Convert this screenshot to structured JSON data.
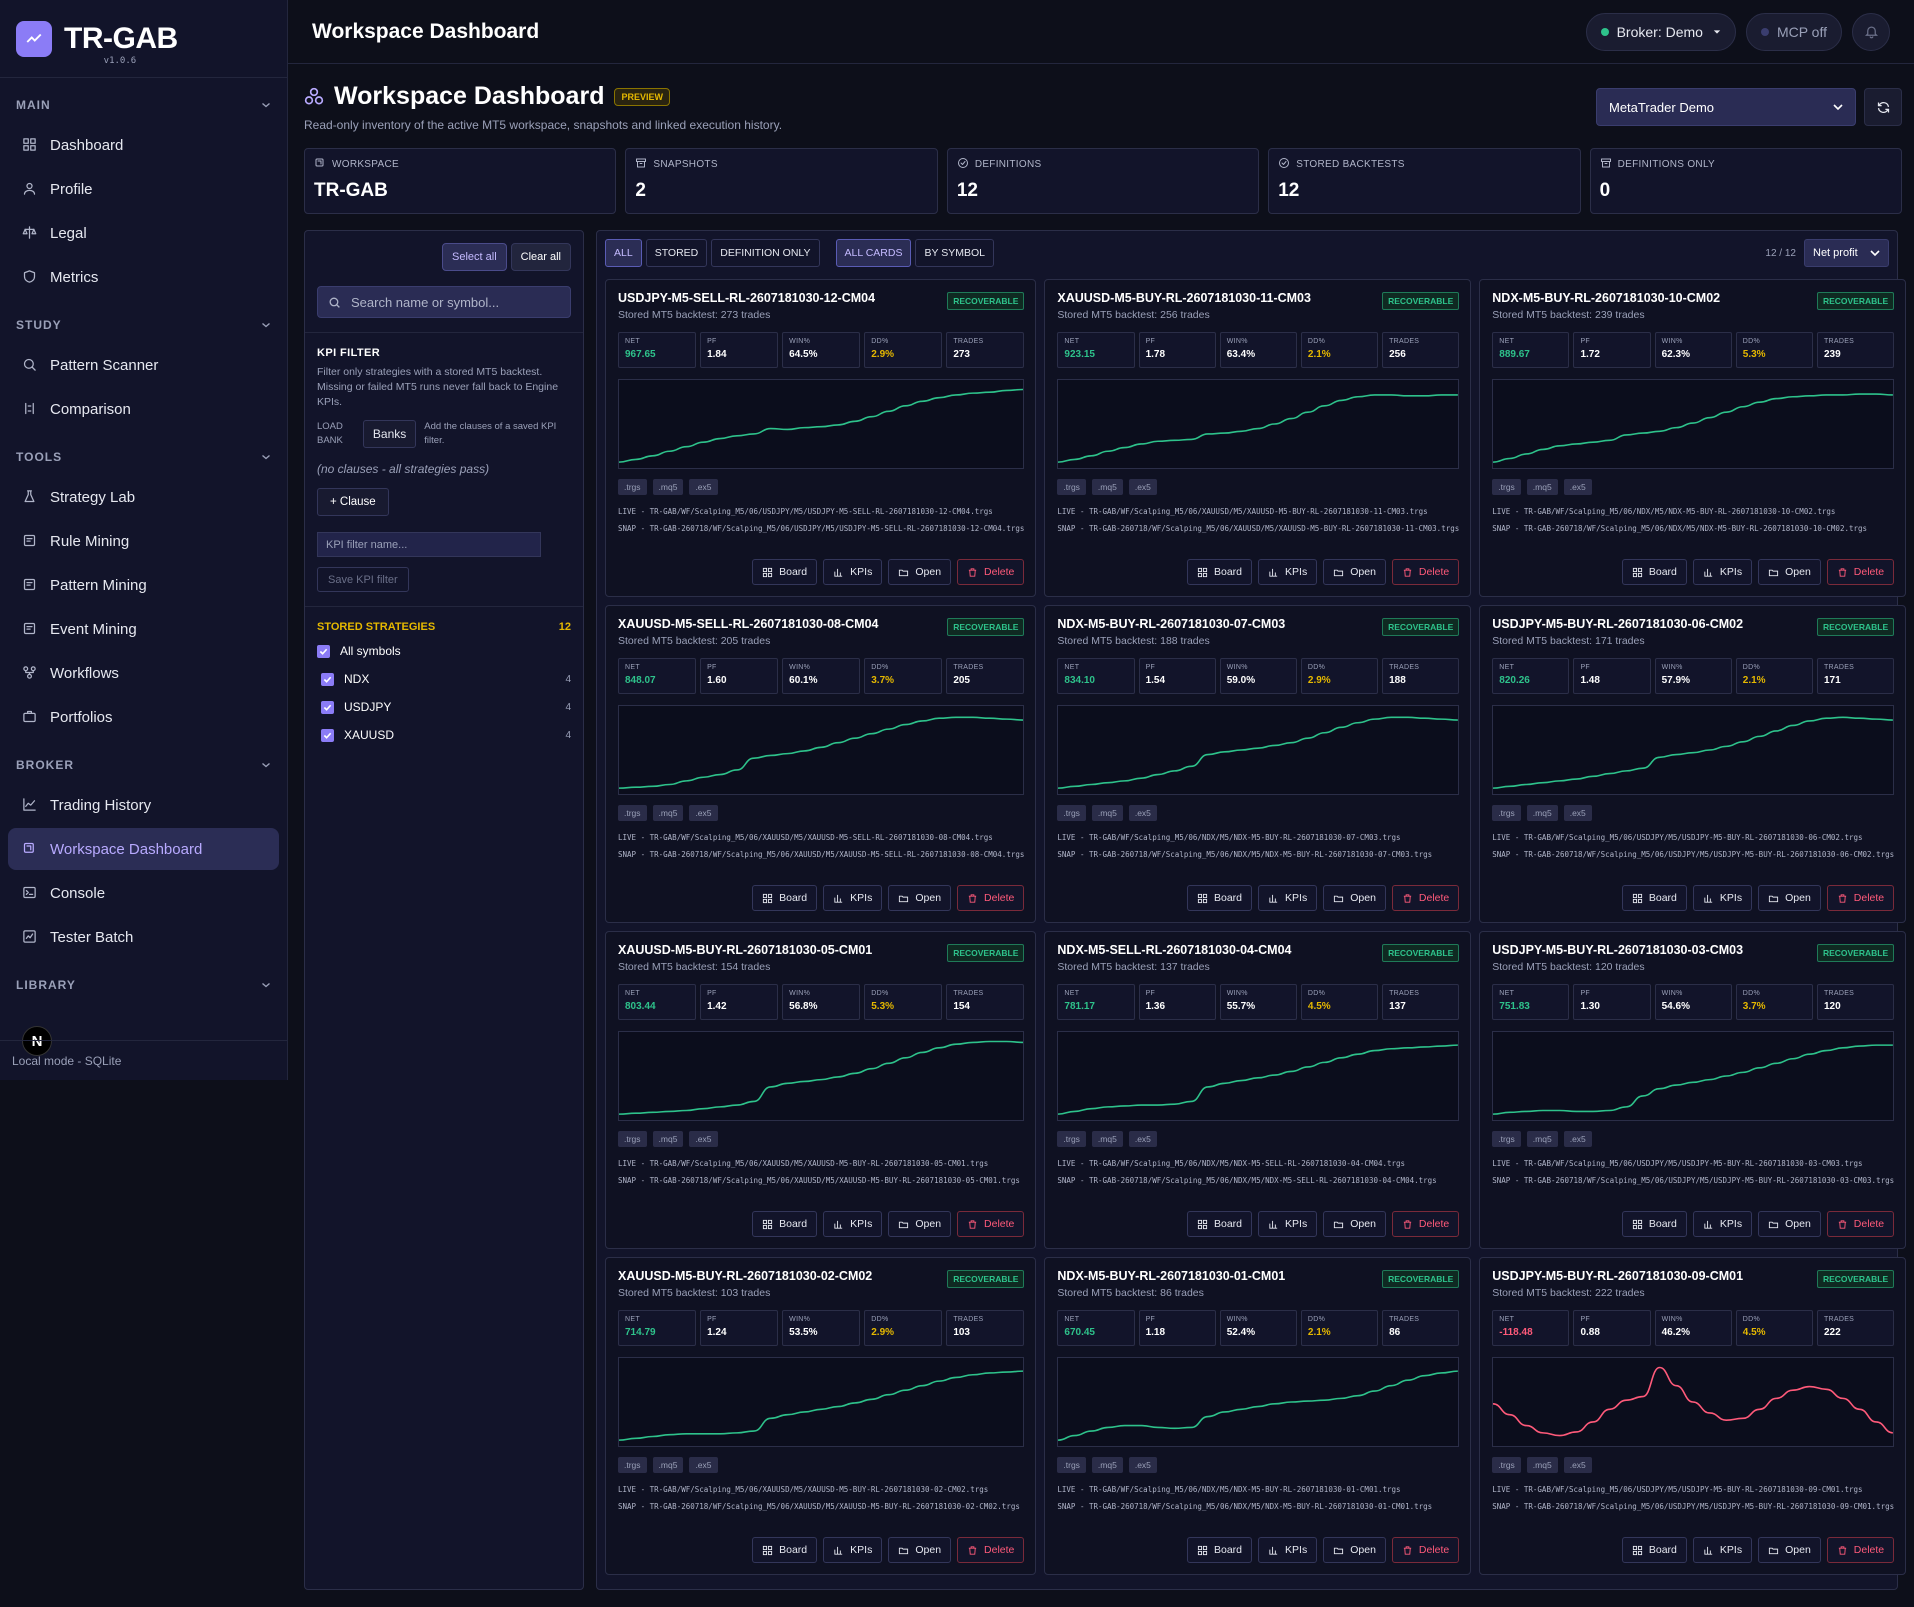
{
  "brand": {
    "name": "TR-GAB",
    "version": "v1.0.6"
  },
  "sidebar": {
    "sections": [
      {
        "title": "MAIN",
        "items": [
          {
            "label": "Dashboard",
            "icon": "grid-icon"
          },
          {
            "label": "Profile",
            "icon": "user-icon"
          },
          {
            "label": "Legal",
            "icon": "scale-icon"
          },
          {
            "label": "Metrics",
            "icon": "shield-icon"
          }
        ]
      },
      {
        "title": "STUDY",
        "items": [
          {
            "label": "Pattern Scanner",
            "icon": "search-icon"
          },
          {
            "label": "Comparison",
            "icon": "compare-icon"
          }
        ]
      },
      {
        "title": "TOOLS",
        "items": [
          {
            "label": "Strategy Lab",
            "icon": "flask-icon"
          },
          {
            "label": "Rule Mining",
            "icon": "mining-icon"
          },
          {
            "label": "Pattern Mining",
            "icon": "mining-icon"
          },
          {
            "label": "Event Mining",
            "icon": "mining-icon"
          },
          {
            "label": "Workflows",
            "icon": "workflow-icon"
          },
          {
            "label": "Portfolios",
            "icon": "briefcase-icon"
          }
        ]
      },
      {
        "title": "BROKER",
        "items": [
          {
            "label": "Trading History",
            "icon": "chart-line-icon"
          },
          {
            "label": "Workspace Dashboard",
            "icon": "workspace-icon",
            "active": true
          },
          {
            "label": "Console",
            "icon": "terminal-icon"
          },
          {
            "label": "Tester Batch",
            "icon": "batch-icon"
          }
        ]
      },
      {
        "title": "LIBRARY",
        "items": []
      }
    ],
    "footer": "Local mode - SQLite",
    "n_badge": "N"
  },
  "topbar": {
    "title": "Workspace Dashboard",
    "broker": "Broker: Demo",
    "mcp": "MCP off",
    "colors": {
      "ok": "#2ec28b",
      "off": "#3a3d6e"
    }
  },
  "page": {
    "title": "Workspace Dashboard",
    "badge": "PREVIEW",
    "subtitle": "Read-only inventory of the active MT5 workspace, snapshots and linked execution history.",
    "terminal_select": "MetaTrader Demo"
  },
  "stats": [
    {
      "label": "WORKSPACE",
      "value": "TR-GAB",
      "icon": "workspace-icon"
    },
    {
      "label": "SNAPSHOTS",
      "value": "2",
      "icon": "archive-icon"
    },
    {
      "label": "DEFINITIONS",
      "value": "12",
      "icon": "check-circle-icon"
    },
    {
      "label": "STORED BACKTESTS",
      "value": "12",
      "icon": "check-circle-icon"
    },
    {
      "label": "DEFINITIONS ONLY",
      "value": "0",
      "icon": "archive-icon"
    }
  ],
  "filter": {
    "select_all": "Select all",
    "clear_all": "Clear all",
    "search_placeholder": "Search name or symbol...",
    "kpi_title": "KPI FILTER",
    "kpi_desc": "Filter only strategies with a stored MT5 backtest. Missing or failed MT5 runs never fall back to Engine KPIs.",
    "load_bank": "LOAD BANK",
    "banks": "Banks",
    "banks_desc": "Add the clauses of a saved KPI filter.",
    "no_clauses": "(no clauses - all strategies pass)",
    "add_clause": "+ Clause",
    "filter_name_placeholder": "KPI filter name...",
    "save": "Save KPI filter",
    "stored_title": "STORED STRATEGIES",
    "stored_count": "12",
    "all_symbols": "All symbols",
    "symbols": [
      {
        "name": "NDX",
        "count": "4"
      },
      {
        "name": "USDJPY",
        "count": "4"
      },
      {
        "name": "XAUUSD",
        "count": "4"
      }
    ]
  },
  "toolbar": {
    "chips": [
      "ALL",
      "STORED",
      "DEFINITION ONLY"
    ],
    "views": [
      "ALL CARDS",
      "BY SYMBOL"
    ],
    "count": "12 / 12",
    "sort": "Net profit"
  },
  "labels": {
    "recoverable": "RECOVERABLE",
    "net": "NET",
    "pf": "PF",
    "win": "WIN%",
    "dd": "DD%",
    "trades": "TRADES",
    "tags": [
      ".trgs",
      ".mq5",
      ".ex5"
    ],
    "board": "Board",
    "kpis": "KPIs",
    "open": "Open",
    "delete": "Delete"
  },
  "colors": {
    "accent": "#8b7cf6",
    "positive": "#2ec28b",
    "negative": "#ff5a7a",
    "warning": "#e5b800"
  },
  "cards": [
    {
      "title": "USDJPY-M5-SELL-RL-2607181030-12-CM04",
      "sub": "Stored MT5 backtest: 273 trades",
      "net": "967.65",
      "pf": "1.84",
      "win": "64.5%",
      "dd": "2.9%",
      "trades": "273",
      "neg": false,
      "live": "LIVE - TR-GAB/WF/Scalping_M5/06/USDJPY/M5/USDJPY-M5-SELL-RL-2607181030-12-CM04.trgs",
      "snap": "SNAP - TR-GAB-260718/WF/Scalping_M5/06/USDJPY/M5/USDJPY-M5-SELL-RL-2607181030-12-CM04.trgs",
      "equity": [
        0,
        3,
        7,
        12,
        17,
        22,
        26,
        29,
        31,
        37,
        36,
        38,
        39,
        41,
        45,
        50,
        56,
        62,
        67,
        71,
        74,
        76,
        77,
        79,
        80
      ]
    },
    {
      "title": "XAUUSD-M5-BUY-RL-2607181030-11-CM03",
      "sub": "Stored MT5 backtest: 256 trades",
      "net": "923.15",
      "pf": "1.78",
      "win": "63.4%",
      "dd": "2.1%",
      "trades": "256",
      "neg": false,
      "live": "LIVE - TR-GAB/WF/Scalping_M5/06/XAUUSD/M5/XAUUSD-M5-BUY-RL-2607181030-11-CM03.trgs",
      "snap": "SNAP - TR-GAB-260718/WF/Scalping_M5/06/XAUUSD/M5/XAUUSD-M5-BUY-RL-2607181030-11-CM03.trgs",
      "equity": [
        0,
        3,
        7,
        12,
        16,
        20,
        23,
        24,
        25,
        31,
        32,
        34,
        37,
        42,
        48,
        55,
        62,
        68,
        72,
        74,
        74,
        73,
        73,
        74,
        74
      ]
    },
    {
      "title": "NDX-M5-BUY-RL-2607181030-10-CM02",
      "sub": "Stored MT5 backtest: 239 trades",
      "net": "889.67",
      "pf": "1.72",
      "win": "62.3%",
      "dd": "5.3%",
      "trades": "239",
      "neg": false,
      "live": "LIVE - TR-GAB/WF/Scalping_M5/06/NDX/M5/NDX-M5-BUY-RL-2607181030-10-CM02.trgs",
      "snap": "SNAP - TR-GAB-260718/WF/Scalping_M5/06/NDX/M5/NDX-M5-BUY-RL-2607181030-10-CM02.trgs",
      "equity": [
        0,
        4,
        9,
        14,
        18,
        20,
        22,
        24,
        30,
        32,
        34,
        38,
        43,
        49,
        55,
        61,
        66,
        70,
        72,
        73,
        74,
        74,
        75,
        75,
        74
      ]
    },
    {
      "title": "XAUUSD-M5-SELL-RL-2607181030-08-CM04",
      "sub": "Stored MT5 backtest: 205 trades",
      "net": "848.07",
      "pf": "1.60",
      "win": "60.1%",
      "dd": "3.7%",
      "trades": "205",
      "neg": false,
      "live": "LIVE - TR-GAB/WF/Scalping_M5/06/XAUUSD/M5/XAUUSD-M5-SELL-RL-2607181030-08-CM04.trgs",
      "snap": "SNAP - TR-GAB-260718/WF/Scalping_M5/06/XAUUSD/M5/XAUUSD-M5-SELL-RL-2607181030-08-CM04.trgs",
      "equity": [
        0,
        1,
        2,
        4,
        8,
        12,
        15,
        20,
        33,
        36,
        38,
        41,
        45,
        50,
        55,
        60,
        65,
        70,
        74,
        77,
        78,
        78,
        77,
        76,
        75
      ]
    },
    {
      "title": "NDX-M5-BUY-RL-2607181030-07-CM03",
      "sub": "Stored MT5 backtest: 188 trades",
      "net": "834.10",
      "pf": "1.54",
      "win": "59.0%",
      "dd": "2.9%",
      "trades": "188",
      "neg": false,
      "live": "LIVE - TR-GAB/WF/Scalping_M5/06/NDX/M5/NDX-M5-BUY-RL-2607181030-07-CM03.trgs",
      "snap": "SNAP - TR-GAB-260718/WF/Scalping_M5/06/NDX/M5/NDX-M5-BUY-RL-2607181030-07-CM03.trgs",
      "equity": [
        0,
        2,
        4,
        6,
        8,
        11,
        15,
        19,
        24,
        37,
        40,
        42,
        44,
        47,
        50,
        55,
        61,
        67,
        72,
        76,
        78,
        78,
        77,
        76,
        75
      ]
    },
    {
      "title": "USDJPY-M5-BUY-RL-2607181030-06-CM02",
      "sub": "Stored MT5 backtest: 171 trades",
      "net": "820.26",
      "pf": "1.48",
      "win": "57.9%",
      "dd": "2.1%",
      "trades": "171",
      "neg": false,
      "live": "LIVE - TR-GAB/WF/Scalping_M5/06/USDJPY/M5/USDJPY-M5-BUY-RL-2607181030-06-CM02.trgs",
      "snap": "SNAP - TR-GAB-260718/WF/Scalping_M5/06/USDJPY/M5/USDJPY-M5-BUY-RL-2607181030-06-CM02.trgs",
      "equity": [
        0,
        2,
        4,
        6,
        8,
        10,
        13,
        16,
        19,
        22,
        34,
        37,
        39,
        42,
        46,
        51,
        57,
        63,
        69,
        74,
        77,
        78,
        77,
        76,
        75
      ]
    },
    {
      "title": "XAUUSD-M5-BUY-RL-2607181030-05-CM01",
      "sub": "Stored MT5 backtest: 154 trades",
      "net": "803.44",
      "pf": "1.42",
      "win": "56.8%",
      "dd": "5.3%",
      "trades": "154",
      "neg": false,
      "live": "LIVE - TR-GAB/WF/Scalping_M5/06/XAUUSD/M5/XAUUSD-M5-BUY-RL-2607181030-05-CM01.trgs",
      "snap": "SNAP - TR-GAB-260718/WF/Scalping_M5/06/XAUUSD/M5/XAUUSD-M5-BUY-RL-2607181030-05-CM01.trgs",
      "equity": [
        0,
        1,
        2,
        3,
        4,
        6,
        8,
        10,
        14,
        30,
        34,
        36,
        38,
        41,
        45,
        50,
        56,
        62,
        68,
        73,
        77,
        79,
        80,
        80,
        79
      ]
    },
    {
      "title": "NDX-M5-SELL-RL-2607181030-04-CM04",
      "sub": "Stored MT5 backtest: 137 trades",
      "net": "781.17",
      "pf": "1.36",
      "win": "55.7%",
      "dd": "4.5%",
      "trades": "137",
      "neg": false,
      "live": "LIVE - TR-GAB/WF/Scalping_M5/06/NDX/M5/NDX-M5-SELL-RL-2607181030-04-CM04.trgs",
      "snap": "SNAP - TR-GAB-260718/WF/Scalping_M5/06/NDX/M5/NDX-M5-SELL-RL-2607181030-04-CM04.trgs",
      "equity": [
        0,
        3,
        6,
        8,
        9,
        10,
        10,
        11,
        14,
        30,
        34,
        37,
        40,
        43,
        47,
        52,
        57,
        62,
        66,
        70,
        72,
        73,
        74,
        75,
        76
      ]
    },
    {
      "title": "USDJPY-M5-BUY-RL-2607181030-03-CM03",
      "sub": "Stored MT5 backtest: 120 trades",
      "net": "751.83",
      "pf": "1.30",
      "win": "54.6%",
      "dd": "3.7%",
      "trades": "120",
      "neg": false,
      "live": "LIVE - TR-GAB/WF/Scalping_M5/06/USDJPY/M5/USDJPY-M5-BUY-RL-2607181030-03-CM03.trgs",
      "snap": "SNAP - TR-GAB-260718/WF/Scalping_M5/06/USDJPY/M5/USDJPY-M5-BUY-RL-2607181030-03-CM03.trgs",
      "equity": [
        0,
        2,
        3,
        4,
        4,
        3,
        3,
        4,
        8,
        20,
        28,
        32,
        35,
        38,
        42,
        46,
        51,
        56,
        61,
        66,
        70,
        73,
        75,
        76,
        76
      ]
    },
    {
      "title": "XAUUSD-M5-BUY-RL-2607181030-02-CM02",
      "sub": "Stored MT5 backtest: 103 trades",
      "net": "714.79",
      "pf": "1.24",
      "win": "53.5%",
      "dd": "2.9%",
      "trades": "103",
      "neg": false,
      "live": "LIVE - TR-GAB/WF/Scalping_M5/06/XAUUSD/M5/XAUUSD-M5-BUY-RL-2607181030-02-CM02.trgs",
      "snap": "SNAP - TR-GAB-260718/WF/Scalping_M5/06/XAUUSD/M5/XAUUSD-M5-BUY-RL-2607181030-02-CM02.trgs",
      "equity": [
        0,
        2,
        4,
        6,
        7,
        7,
        7,
        8,
        10,
        24,
        28,
        31,
        34,
        37,
        41,
        45,
        50,
        55,
        60,
        65,
        69,
        72,
        74,
        75,
        76
      ]
    },
    {
      "title": "NDX-M5-BUY-RL-2607181030-01-CM01",
      "sub": "Stored MT5 backtest: 86 trades",
      "net": "670.45",
      "pf": "1.18",
      "win": "52.4%",
      "dd": "2.1%",
      "trades": "86",
      "neg": false,
      "live": "LIVE - TR-GAB/WF/Scalping_M5/06/NDX/M5/NDX-M5-BUY-RL-2607181030-01-CM01.trgs",
      "snap": "SNAP - TR-GAB-260718/WF/Scalping_M5/06/NDX/M5/NDX-M5-BUY-RL-2607181030-01-CM01.trgs",
      "equity": [
        0,
        5,
        10,
        14,
        16,
        16,
        14,
        13,
        14,
        26,
        31,
        34,
        37,
        40,
        42,
        43,
        44,
        46,
        49,
        54,
        60,
        66,
        71,
        74,
        76
      ]
    },
    {
      "title": "USDJPY-M5-BUY-RL-2607181030-09-CM01",
      "sub": "Stored MT5 backtest: 222 trades",
      "net": "-118.48",
      "pf": "0.88",
      "win": "46.2%",
      "dd": "4.5%",
      "trades": "222",
      "neg": true,
      "live": "LIVE - TR-GAB/WF/Scalping_M5/06/USDJPY/M5/USDJPY-M5-BUY-RL-2607181030-09-CM01.trgs",
      "snap": "SNAP - TR-GAB-260718/WF/Scalping_M5/06/USDJPY/M5/USDJPY-M5-BUY-RL-2607181030-09-CM01.trgs",
      "equity": [
        40,
        28,
        16,
        8,
        5,
        9,
        20,
        34,
        44,
        48,
        80,
        60,
        42,
        30,
        22,
        24,
        34,
        46,
        55,
        59,
        56,
        46,
        34,
        20,
        8
      ]
    }
  ]
}
